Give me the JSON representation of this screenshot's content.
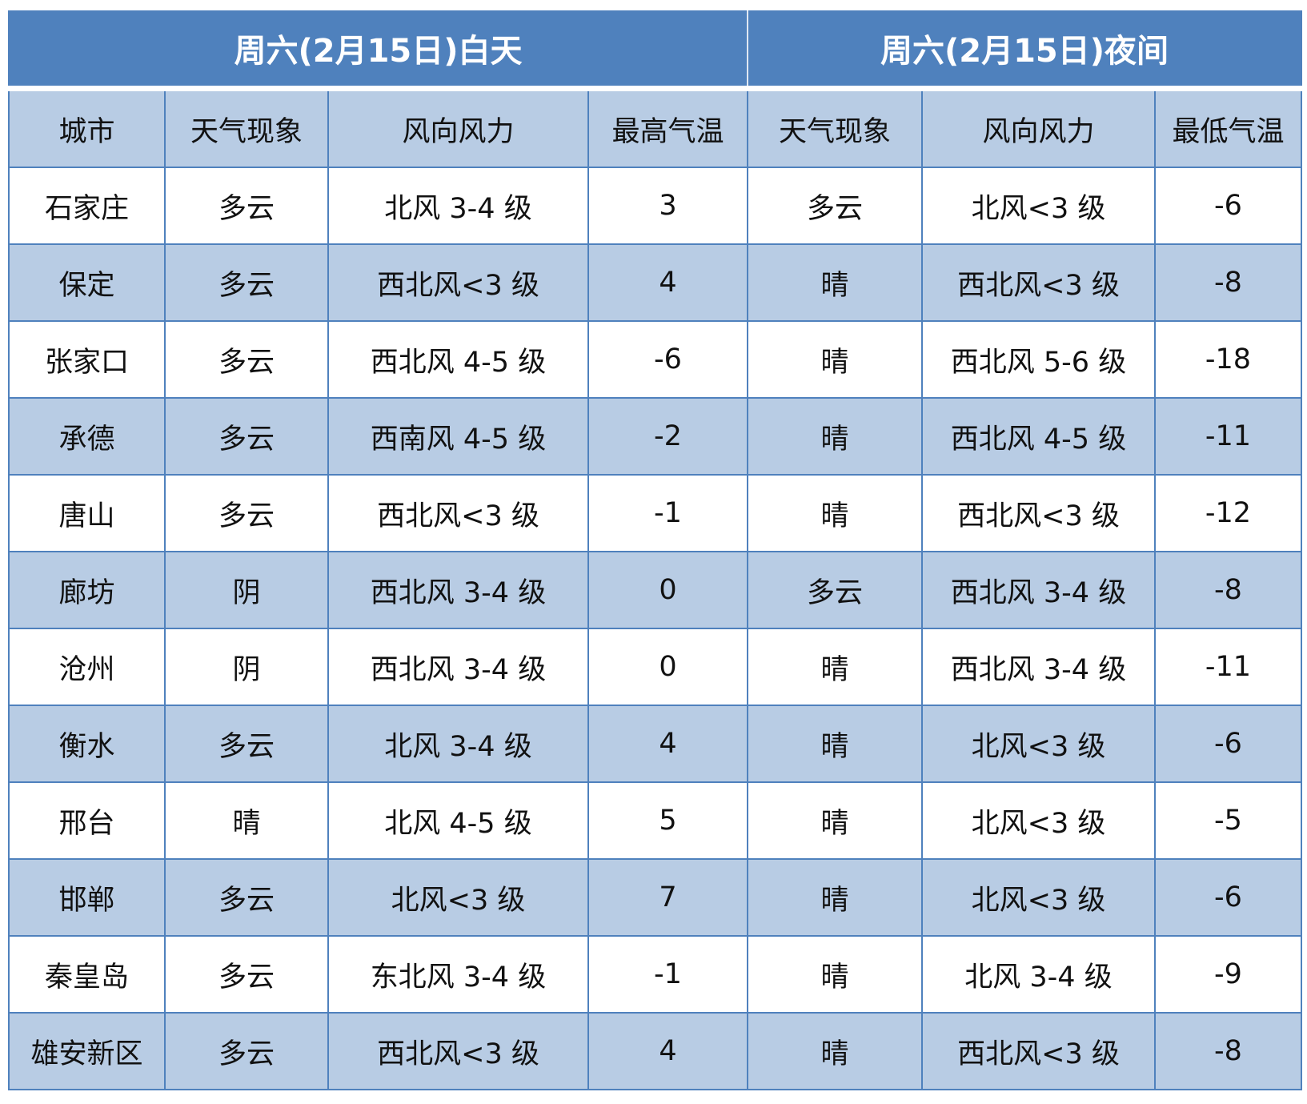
{
  "title_day": "周六(2月15日)白天",
  "title_night": "周六(2月15日)夜间",
  "columns": [
    "城市",
    "天气现象",
    "风向风力",
    "最高气温",
    "天气现象",
    "风向风力",
    "最低气温"
  ],
  "colors": {
    "header": "#4f81bd",
    "alt_row": "#b8cce4",
    "border": "#4f81bd"
  },
  "rows": [
    [
      "石家庄",
      "多云",
      "北风 3-4 级",
      "3",
      "多云",
      "北风<3 级",
      "-6"
    ],
    [
      "保定",
      "多云",
      "西北风<3 级",
      "4",
      "晴",
      "西北风<3 级",
      "-8"
    ],
    [
      "张家口",
      "多云",
      "西北风 4-5 级",
      "-6",
      "晴",
      "西北风 5-6 级",
      "-18"
    ],
    [
      "承德",
      "多云",
      "西南风 4-5 级",
      "-2",
      "晴",
      "西北风 4-5 级",
      "-11"
    ],
    [
      "唐山",
      "多云",
      "西北风<3 级",
      "-1",
      "晴",
      "西北风<3 级",
      "-12"
    ],
    [
      "廊坊",
      "阴",
      "西北风 3-4 级",
      "0",
      "多云",
      "西北风 3-4 级",
      "-8"
    ],
    [
      "沧州",
      "阴",
      "西北风 3-4 级",
      "0",
      "晴",
      "西北风 3-4 级",
      "-11"
    ],
    [
      "衡水",
      "多云",
      "北风 3-4 级",
      "4",
      "晴",
      "北风<3 级",
      "-6"
    ],
    [
      "邢台",
      "晴",
      "北风 4-5 级",
      "5",
      "晴",
      "北风<3 级",
      "-5"
    ],
    [
      "邯郸",
      "多云",
      "北风<3 级",
      "7",
      "晴",
      "北风<3 级",
      "-6"
    ],
    [
      "秦皇岛",
      "多云",
      "东北风 3-4 级",
      "-1",
      "晴",
      "北风 3-4 级",
      "-9"
    ],
    [
      "雄安新区",
      "多云",
      "西北风<3 级",
      "4",
      "晴",
      "西北风<3 级",
      "-8"
    ]
  ]
}
